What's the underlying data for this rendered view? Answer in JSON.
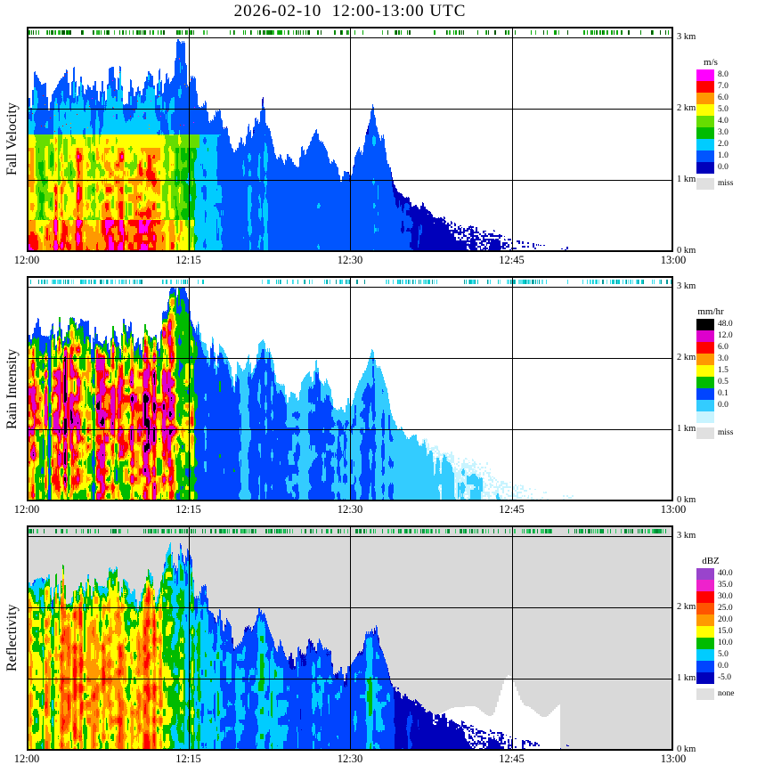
{
  "chart_data": {
    "type": "heatmap",
    "title": "2026-02-10  12:00-13:00 UTC",
    "x_ticks": [
      "12:00",
      "12:15",
      "12:30",
      "12:45",
      "13:00"
    ],
    "y_ticks_right": [
      "3 km",
      "2 km",
      "1 km",
      "0 km"
    ],
    "x_range_minutes": [
      0,
      60
    ],
    "y_range_km": [
      0,
      3
    ],
    "grid": "on",
    "panels": [
      {
        "id": "fall-velocity",
        "ylabel": "Fall Velocity",
        "colorbar_title": "m/s",
        "background": "#ffffff",
        "colorbar": [
          {
            "label": "8.0",
            "color": "#ff00ff"
          },
          {
            "label": "7.0",
            "color": "#ff0000"
          },
          {
            "label": "6.0",
            "color": "#ff9900"
          },
          {
            "label": "5.0",
            "color": "#ffff00"
          },
          {
            "label": "4.0",
            "color": "#66dd00"
          },
          {
            "label": "3.0",
            "color": "#00bb00"
          },
          {
            "label": "2.0",
            "color": "#00ccff"
          },
          {
            "label": "1.0",
            "color": "#0055ff"
          },
          {
            "label": "0.0",
            "color": "#0000bb"
          }
        ],
        "nodata": {
          "label": "miss",
          "color": "#e0e0e0"
        },
        "strip_colors": [
          "#008800",
          "#00aa00",
          "#005500",
          "#33bb33"
        ]
      },
      {
        "id": "rain-intensity",
        "ylabel": "Rain Intensity",
        "colorbar_title": "mm/hr",
        "background": "#ffffff",
        "colorbar": [
          {
            "label": "48.0",
            "color": "#000000"
          },
          {
            "label": "12.0",
            "color": "#dd00cc"
          },
          {
            "label": "6.0",
            "color": "#ff0000"
          },
          {
            "label": "3.0",
            "color": "#ff9900"
          },
          {
            "label": "1.5",
            "color": "#ffff00"
          },
          {
            "label": "0.5",
            "color": "#00bb00"
          },
          {
            "label": "0.1",
            "color": "#0044ff"
          },
          {
            "label": "0.0",
            "color": "#33ccff"
          },
          {
            "label": "",
            "color": "#c8f4ff"
          }
        ],
        "nodata": {
          "label": "miss",
          "color": "#e0e0e0"
        },
        "strip_colors": [
          "#00cccc",
          "#33ddee",
          "#009999",
          "#66e5ee"
        ]
      },
      {
        "id": "reflectivity",
        "ylabel": "Reflectivity",
        "colorbar_title": "dBZ",
        "background": "#d9d9d9",
        "colorbar": [
          {
            "label": "40.0",
            "color": "#9944cc"
          },
          {
            "label": "35.0",
            "color": "#ee22cc"
          },
          {
            "label": "30.0",
            "color": "#ff0000"
          },
          {
            "label": "25.0",
            "color": "#ff5500"
          },
          {
            "label": "20.0",
            "color": "#ff9900"
          },
          {
            "label": "15.0",
            "color": "#ffff00"
          },
          {
            "label": "10.0",
            "color": "#00bb00"
          },
          {
            "label": "5.0",
            "color": "#00ccff"
          },
          {
            "label": "0.0",
            "color": "#0044ff"
          },
          {
            "label": "-5.0",
            "color": "#0000bb"
          }
        ],
        "nodata": {
          "label": "none",
          "color": "#e0e0e0"
        },
        "strip_colors": [
          "#00aa44",
          "#008833",
          "#33cc66"
        ]
      }
    ],
    "profile": {
      "sample_interval_min": 1,
      "melting_layer_km": 1.55,
      "echo_top_km": [
        2.25,
        2.3,
        2.2,
        2.35,
        2.3,
        2.4,
        2.3,
        2.25,
        2.4,
        2.3,
        2.2,
        2.3,
        2.25,
        2.5,
        2.9,
        2.6,
        2.2,
        2.0,
        1.8,
        1.6,
        1.5,
        1.8,
        2.0,
        1.5,
        1.3,
        1.3,
        1.5,
        1.6,
        1.3,
        1.1,
        1.1,
        1.4,
        1.9,
        1.5,
        0.9,
        0.75,
        0.65,
        0.6,
        0.5,
        0.45,
        0.4,
        0.35,
        0.3,
        0.3,
        0.25,
        0.2,
        0.15,
        0.12,
        0.1,
        0.0,
        0.08,
        0.0,
        0.0,
        0.0,
        0.0,
        0.0,
        0.0,
        0.0,
        0.0,
        0.0,
        0.0
      ],
      "echo_intensity": [
        0.92,
        0.95,
        0.9,
        1.0,
        0.97,
        0.93,
        0.9,
        0.92,
        0.96,
        0.93,
        0.9,
        0.93,
        0.9,
        0.85,
        0.75,
        0.65,
        0.55,
        0.5,
        0.46,
        0.42,
        0.38,
        0.42,
        0.45,
        0.38,
        0.33,
        0.32,
        0.36,
        0.38,
        0.32,
        0.28,
        0.28,
        0.33,
        0.42,
        0.33,
        0.22,
        0.18,
        0.16,
        0.14,
        0.12,
        0.11,
        0.1,
        0.09,
        0.08,
        0.08,
        0.07,
        0.06,
        0.05,
        0.04,
        0.03,
        0,
        0.03,
        0,
        0,
        0,
        0,
        0,
        0,
        0,
        0,
        0,
        0
      ]
    }
  }
}
